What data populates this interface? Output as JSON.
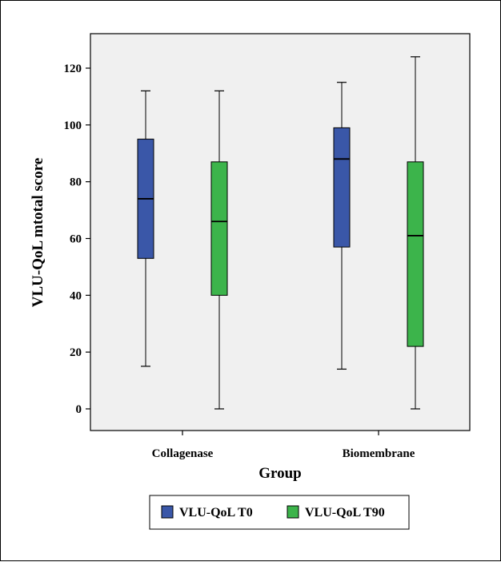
{
  "chart_data": {
    "type": "boxplot",
    "title": "",
    "xlabel": "Group",
    "ylabel": "VLU-QoL mtotal score",
    "ylim": [
      -8,
      132
    ],
    "yticks": [
      0,
      20,
      40,
      60,
      80,
      100,
      120
    ],
    "categories": [
      "Collagenase",
      "Biomembrane"
    ],
    "series": [
      {
        "name": "VLU-QoL T0",
        "color": "#3a57a8",
        "boxes": [
          {
            "min": 15,
            "q1": 53,
            "median": 74,
            "q3": 95,
            "max": 112
          },
          {
            "min": 14,
            "q1": 57,
            "median": 88,
            "q3": 99,
            "max": 115
          }
        ]
      },
      {
        "name": "VLU-QoL T90",
        "color": "#3cb44b",
        "boxes": [
          {
            "min": 0,
            "q1": 40,
            "median": 66,
            "q3": 87,
            "max": 112
          },
          {
            "min": 0,
            "q1": 22,
            "median": 61,
            "q3": 87,
            "max": 124
          }
        ]
      }
    ],
    "grid": false,
    "legend": "bottom-center"
  }
}
